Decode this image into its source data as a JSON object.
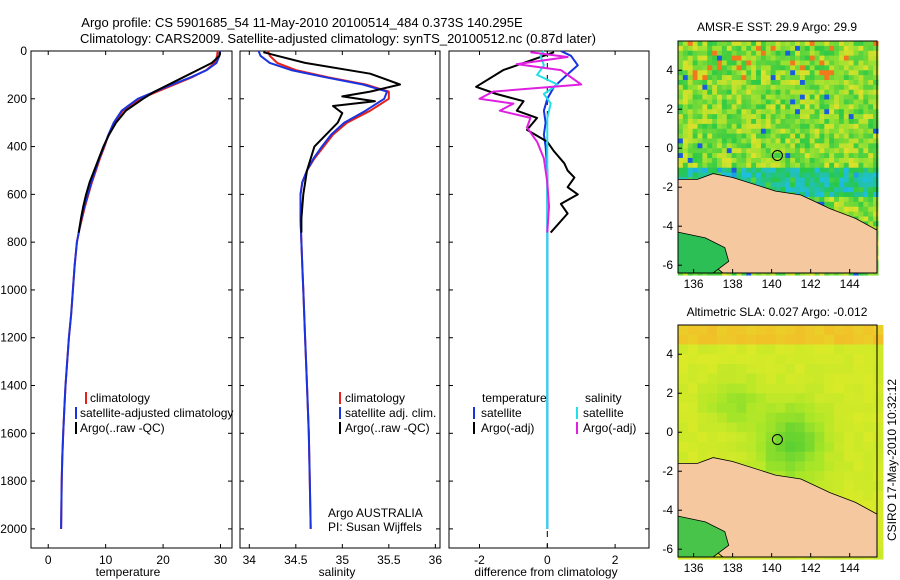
{
  "header": {
    "title_line1": "Argo profile: CS 5901685_54 11-May-2010 20100514_484 0.373S 140.295E",
    "title_line2": "Climatology: CARS2009. Satellite-adjusted climatology: synTS_20100512.nc (0.87d later)"
  },
  "colors": {
    "climatology": "#e8201a",
    "satellite": "#1a33e0",
    "argo": "#000000",
    "salinity_satellite": "#20e0e8",
    "salinity_argo": "#e020e0",
    "sst_land": "#f5c8a0"
  },
  "chart_data": [
    {
      "type": "line",
      "id": "temperature",
      "xlabel": "temperature",
      "ylabel": "",
      "xlim": [
        -3,
        32
      ],
      "ylim": [
        2080,
        0
      ],
      "xticks": [
        0,
        10,
        20,
        30
      ],
      "yticks": [
        0,
        200,
        400,
        600,
        800,
        1000,
        1200,
        1400,
        1600,
        1800,
        2000
      ],
      "legend": [
        "climatology",
        "satellite-adjusted climatology",
        "Argo(..raw -QC)"
      ],
      "legend_position": "lower-right",
      "series": [
        {
          "name": "climatology",
          "color": "#e8201a",
          "x": [
            29.5,
            29.4,
            29.0,
            27.5,
            25.0,
            22.0,
            19.0,
            16.0,
            13.0,
            11.5,
            10.5,
            9.8,
            9.0,
            8.3,
            7.6,
            7.0,
            6.4,
            5.9,
            5.4,
            5.0,
            4.6,
            4.3,
            4.0,
            3.6,
            3.3,
            3.0,
            2.8,
            2.6,
            2.45,
            2.35,
            2.25
          ],
          "depth": [
            0,
            20,
            50,
            80,
            110,
            140,
            170,
            200,
            250,
            300,
            350,
            400,
            450,
            500,
            550,
            600,
            650,
            700,
            750,
            800,
            900,
            1000,
            1100,
            1200,
            1300,
            1400,
            1500,
            1600,
            1700,
            1800,
            2000
          ]
        },
        {
          "name": "satellite-adjusted climatology",
          "color": "#1a33e0",
          "x": [
            29.9,
            29.8,
            29.3,
            27.6,
            24.8,
            21.6,
            18.6,
            15.6,
            12.8,
            11.4,
            10.5,
            9.7,
            8.9,
            8.2,
            7.5,
            6.9,
            6.3,
            5.8,
            5.4,
            5.0,
            4.6,
            4.3,
            4.0,
            3.6,
            3.3,
            3.0,
            2.8,
            2.6,
            2.45,
            2.35,
            2.25
          ],
          "depth": [
            0,
            20,
            50,
            80,
            110,
            140,
            170,
            200,
            250,
            300,
            350,
            400,
            450,
            500,
            550,
            600,
            650,
            700,
            750,
            800,
            900,
            1000,
            1100,
            1200,
            1300,
            1400,
            1500,
            1600,
            1700,
            1800,
            2000
          ]
        },
        {
          "name": "Argo(..raw -QC)",
          "color": "#000000",
          "x": [
            29.9,
            29.8,
            28.5,
            26.0,
            23.5,
            21.0,
            18.5,
            16.5,
            13.5,
            11.8,
            10.6,
            9.6,
            8.8,
            8.0,
            7.2,
            6.6,
            6.1,
            5.7,
            5.3
          ],
          "depth": [
            5,
            20,
            50,
            80,
            110,
            140,
            170,
            200,
            250,
            300,
            350,
            400,
            450,
            500,
            550,
            600,
            650,
            700,
            760
          ]
        }
      ]
    },
    {
      "type": "line",
      "id": "salinity",
      "xlabel": "salinity",
      "ylabel": "",
      "xlim": [
        33.9,
        36.05
      ],
      "ylim": [
        2080,
        0
      ],
      "xticks": [
        34,
        34.5,
        35,
        35.5,
        36
      ],
      "yticks": [
        0,
        200,
        400,
        600,
        800,
        1000,
        1200,
        1400,
        1600,
        1800,
        2000
      ],
      "legend": [
        "climatology",
        "satellite adj. clim.",
        "Argo(..raw -QC)"
      ],
      "legend_position": "lower-right",
      "annotations": [
        "Argo AUSTRALIA",
        "PI: Susan Wijffels"
      ],
      "series": [
        {
          "name": "climatology",
          "color": "#e8201a",
          "x": [
            34.2,
            34.22,
            34.3,
            34.5,
            34.85,
            35.25,
            35.5,
            35.5,
            35.3,
            35.05,
            34.9,
            34.8,
            34.7,
            34.62,
            34.57,
            34.55,
            34.55,
            34.56,
            34.57,
            34.58,
            34.6,
            34.62,
            34.64,
            34.65,
            34.66
          ],
          "depth": [
            0,
            20,
            50,
            80,
            110,
            140,
            170,
            200,
            250,
            300,
            350,
            400,
            450,
            500,
            550,
            600,
            700,
            800,
            900,
            1000,
            1200,
            1400,
            1600,
            1800,
            2000
          ]
        },
        {
          "name": "satellite adj. clim.",
          "color": "#1a33e0",
          "x": [
            34.1,
            34.12,
            34.22,
            34.45,
            34.82,
            35.22,
            35.48,
            35.45,
            35.25,
            35.02,
            34.88,
            34.78,
            34.69,
            34.62,
            34.57,
            34.55,
            34.55,
            34.56,
            34.57,
            34.58,
            34.6,
            34.62,
            34.64,
            34.65,
            34.66
          ],
          "depth": [
            0,
            20,
            50,
            80,
            110,
            140,
            170,
            200,
            250,
            300,
            350,
            400,
            450,
            500,
            550,
            600,
            700,
            800,
            900,
            1000,
            1200,
            1400,
            1600,
            1800,
            2000
          ]
        },
        {
          "name": "Argo(..raw -QC)",
          "color": "#000000",
          "x": [
            34.15,
            34.3,
            34.6,
            35.3,
            35.62,
            35.3,
            35.0,
            35.35,
            34.9,
            35.0,
            34.95,
            34.7,
            34.62,
            34.58,
            34.56,
            34.56
          ],
          "depth": [
            5,
            20,
            50,
            95,
            140,
            170,
            190,
            210,
            230,
            260,
            300,
            400,
            500,
            600,
            700,
            760
          ]
        }
      ]
    },
    {
      "type": "line",
      "id": "difference",
      "xlabel": "difference from climatology",
      "ylabel": "",
      "xlim": [
        -2.9,
        3.0
      ],
      "ylim": [
        2080,
        0
      ],
      "xticks": [
        -2,
        0,
        2
      ],
      "yticks": [
        0,
        200,
        400,
        600,
        800,
        1000,
        1200,
        1400,
        1600,
        1800,
        2000
      ],
      "legend_titles": [
        "temperature",
        "salinity"
      ],
      "legend": [
        "satellite",
        "Argo(-adj)",
        "satellite",
        "Argo(-adj)"
      ],
      "legend_position": "lower-right",
      "series": [
        {
          "name": "temperature satellite",
          "color": "#1a33e0",
          "x": [
            0.4,
            0.7,
            0.9,
            0.5,
            0.2,
            0.0,
            -0.1,
            -0.05,
            -0.1,
            -0.05,
            0.0,
            0.0,
            0.0,
            0.0,
            0.0,
            0.0,
            0.0,
            0.0,
            0.0,
            0.0,
            0.0
          ],
          "depth": [
            0,
            20,
            60,
            110,
            150,
            200,
            250,
            300,
            350,
            400,
            500,
            600,
            700,
            800,
            1000,
            1200,
            1400,
            1600,
            1800,
            1900,
            2000
          ]
        },
        {
          "name": "temperature Argo(-adj)",
          "color": "#000000",
          "x": [
            0.2,
            -0.5,
            -1.3,
            -2.1,
            -1.5,
            -0.7,
            -0.9,
            -0.3,
            -0.6,
            0.0,
            0.2,
            0.5,
            0.6,
            0.8,
            0.6,
            0.9,
            0.4,
            0.6,
            0.1
          ],
          "depth": [
            5,
            40,
            80,
            150,
            180,
            210,
            250,
            280,
            330,
            380,
            420,
            470,
            500,
            530,
            570,
            600,
            640,
            680,
            760
          ]
        },
        {
          "name": "salinity satellite",
          "color": "#20e0e8",
          "x": [
            -0.1,
            -0.2,
            -0.1,
            -0.3,
            0.3,
            -0.1,
            0.1,
            0.0,
            0.0,
            0.0,
            0.0,
            0.0,
            0.0,
            0.0,
            0.0,
            0.0,
            0.0,
            0.0,
            0.0
          ],
          "depth": [
            0,
            20,
            60,
            100,
            140,
            180,
            220,
            280,
            350,
            400,
            500,
            600,
            800,
            1000,
            1200,
            1400,
            1600,
            1800,
            2000
          ]
        },
        {
          "name": "salinity Argo(-adj)",
          "color": "#e020e0",
          "x": [
            -0.5,
            0.6,
            -0.9,
            0.4,
            1.0,
            -1.6,
            -2.0,
            -1.0,
            -1.4,
            -0.5,
            -0.6,
            -0.3,
            -0.1,
            0.0,
            0.05,
            0.0
          ],
          "depth": [
            5,
            25,
            55,
            80,
            140,
            170,
            200,
            220,
            250,
            280,
            320,
            380,
            450,
            550,
            650,
            760
          ]
        }
      ]
    },
    {
      "type": "heatmap",
      "id": "sst-map",
      "title": "AMSR-E SST: 29.9 Argo: 29.9",
      "xlim": [
        135.2,
        145.4
      ],
      "ylim": [
        -6.4,
        5.5
      ],
      "xticks": [
        136,
        138,
        140,
        142,
        144
      ],
      "yticks": [
        -6,
        -4,
        -2,
        0,
        2,
        4
      ],
      "marker": {
        "lon": 140.295,
        "lat": -0.373
      }
    },
    {
      "type": "heatmap",
      "id": "sla-map",
      "title": "Altimetric SLA: 0.027 Argo: -0.012",
      "xlim": [
        135.2,
        145.4
      ],
      "ylim": [
        -6.4,
        5.5
      ],
      "xticks": [
        136,
        138,
        140,
        142,
        144
      ],
      "yticks": [
        -6,
        -4,
        -2,
        0,
        2,
        4
      ],
      "marker": {
        "lon": 140.295,
        "lat": -0.373
      }
    }
  ],
  "footer": {
    "credit": "CSIRO 17-May-2010 10:32:12"
  }
}
